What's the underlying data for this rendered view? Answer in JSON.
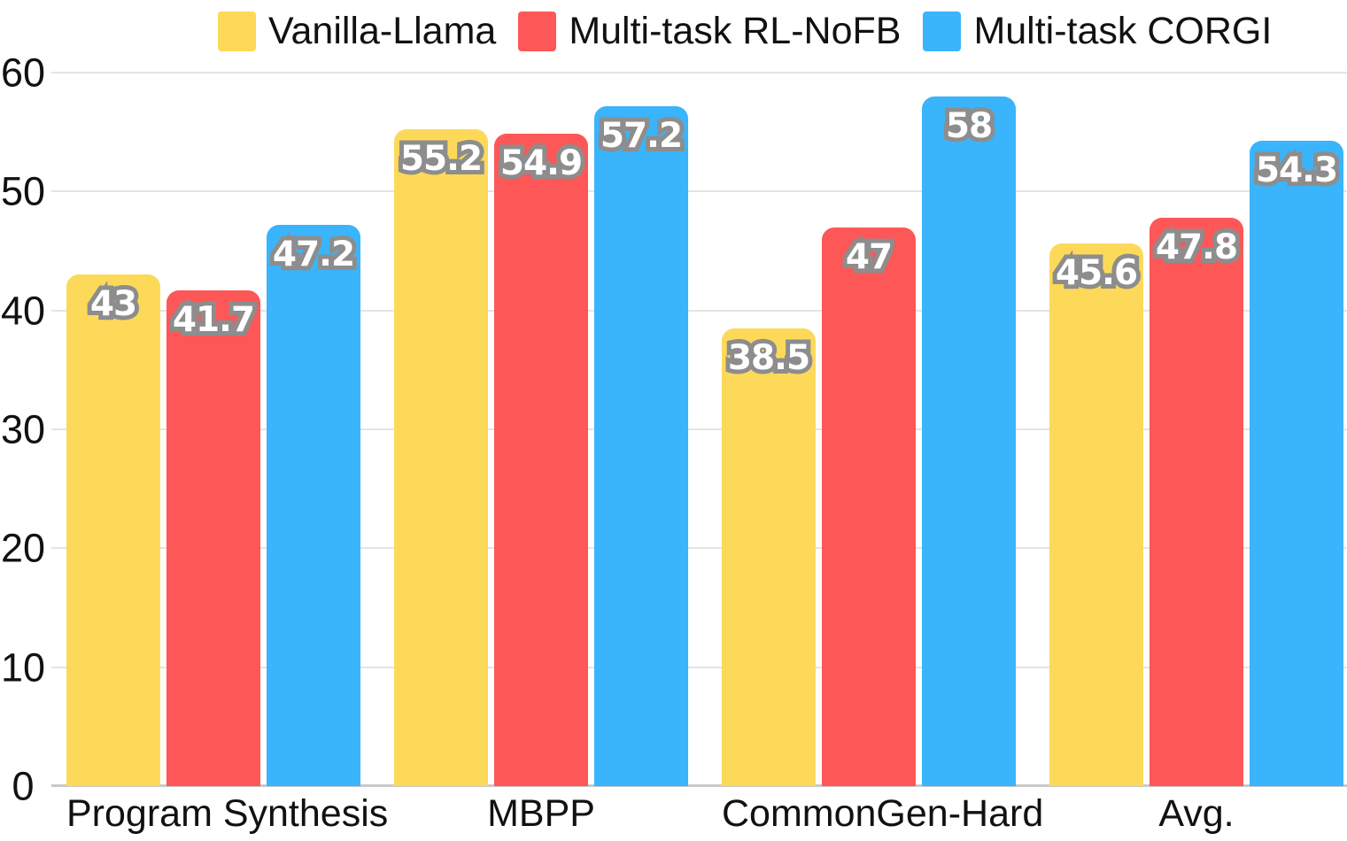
{
  "chart_data": {
    "type": "bar",
    "title": "",
    "xlabel": "",
    "ylabel": "",
    "categories": [
      "Program Synthesis",
      "MBPP",
      "CommonGen-Hard",
      "Avg."
    ],
    "series": [
      {
        "name": "Vanilla-Llama",
        "color": "#FDD95A",
        "values": [
          43,
          55.2,
          38.5,
          45.6
        ],
        "labels": [
          "43",
          "55.2",
          "38.5",
          "45.6"
        ]
      },
      {
        "name": "Multi-task RL-NoFB",
        "color": "#FD5757",
        "values": [
          41.7,
          54.9,
          47,
          47.8
        ],
        "labels": [
          "41.7",
          "54.9",
          "47",
          "47.8"
        ]
      },
      {
        "name": "Multi-task CORGI",
        "color": "#3AB4FB",
        "values": [
          47.2,
          57.2,
          58,
          54.3
        ],
        "labels": [
          "47.2",
          "57.2",
          "58",
          "54.3"
        ]
      }
    ],
    "yticks": [
      0,
      10,
      20,
      30,
      40,
      50,
      60
    ],
    "ylim": [
      0,
      60
    ],
    "grid": true,
    "legend_position": "top",
    "colors": {
      "bar_label_fill": "#ffffff",
      "bar_label_outline": "#8d8d8d",
      "gridline": "#e4e4e4",
      "baseline": "#c9c9c9",
      "axis_text": "#111111"
    }
  }
}
